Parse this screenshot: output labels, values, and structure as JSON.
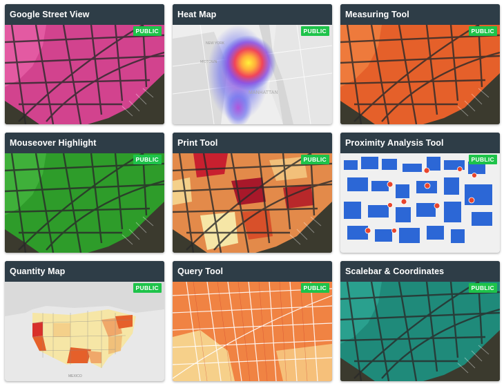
{
  "badge_label": "PUBLIC",
  "cards": [
    {
      "title": "Google Street View",
      "theme": "pink"
    },
    {
      "title": "Heat Map",
      "theme": "heat"
    },
    {
      "title": "Measuring Tool",
      "theme": "orange"
    },
    {
      "title": "Mouseover Highlight",
      "theme": "green"
    },
    {
      "title": "Print Tool",
      "theme": "print"
    },
    {
      "title": "Proximity Analysis Tool",
      "theme": "blue"
    },
    {
      "title": "Quantity Map",
      "theme": "usa"
    },
    {
      "title": "Query Tool",
      "theme": "query"
    },
    {
      "title": "Scalebar & Coordinates",
      "theme": "teal"
    }
  ],
  "map_labels": {
    "heat_map_labels": [
      "NEW YORK",
      "MIDTOWN",
      "MANHATTAN"
    ],
    "quantity_map_label": "MEXICO"
  },
  "colors": {
    "header_bg": "#2e3d47",
    "badge_bg": "#1ec34a",
    "pink": "#d2438e",
    "orange": "#e5602a",
    "green": "#2e9c2a",
    "teal": "#1f8a7a",
    "blue": "#2c67d6",
    "dot": "#e8452c"
  }
}
